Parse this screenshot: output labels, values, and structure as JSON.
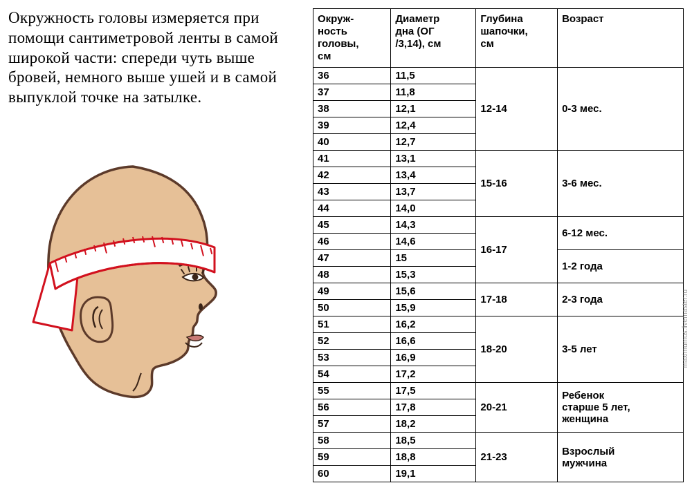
{
  "description": "Окружность головы измеряется при помощи сантиметровой ленты в самой широкой части: спереди чуть выше бровей, немного выше ушей и в самой выпуклой точке на затылке.",
  "table": {
    "columns": [
      "Окруж-\nность\nголовы,\nсм",
      "Диаметр\nдна (ОГ\n/3,14), см",
      "Глубина\nшапочки,\nсм",
      "Возраст"
    ],
    "col_widths": [
      "21%",
      "23%",
      "22%",
      "34%"
    ],
    "rows": [
      {
        "c": "36",
        "d": "11,5",
        "depth": {
          "span": 5,
          "text": "12-14"
        },
        "age": {
          "span": 5,
          "text": "0-3 мес."
        }
      },
      {
        "c": "37",
        "d": "11,8"
      },
      {
        "c": "38",
        "d": "12,1"
      },
      {
        "c": "39",
        "d": "12,4"
      },
      {
        "c": "40",
        "d": "12,7"
      },
      {
        "c": "41",
        "d": "13,1",
        "depth": {
          "span": 4,
          "text": "15-16"
        },
        "age": {
          "span": 4,
          "text": "3-6 мес."
        }
      },
      {
        "c": "42",
        "d": "13,4"
      },
      {
        "c": "43",
        "d": "13,7"
      },
      {
        "c": "44",
        "d": "14,0"
      },
      {
        "c": "45",
        "d": "14,3",
        "depth": {
          "span": 4,
          "text": "16-17"
        },
        "age": {
          "span": 2,
          "text": "6-12 мес."
        }
      },
      {
        "c": "46",
        "d": "14,6"
      },
      {
        "c": "47",
        "d": "15",
        "age": {
          "span": 2,
          "text": "1-2 года"
        }
      },
      {
        "c": "48",
        "d": "15,3"
      },
      {
        "c": "49",
        "d": "15,6",
        "depth": {
          "span": 2,
          "text": "17-18"
        },
        "age": {
          "span": 2,
          "text": "2-3 года"
        }
      },
      {
        "c": "50",
        "d": "15,9"
      },
      {
        "c": "51",
        "d": "16,2",
        "depth": {
          "span": 4,
          "text": "18-20"
        },
        "age": {
          "span": 4,
          "text": "3-5 лет"
        }
      },
      {
        "c": "52",
        "d": "16,6"
      },
      {
        "c": "53",
        "d": "16,9"
      },
      {
        "c": "54",
        "d": "17,2"
      },
      {
        "c": "55",
        "d": "17,5",
        "depth": {
          "span": 3,
          "text": "20-21"
        },
        "age": {
          "span": 3,
          "text": "Ребенок\nстарше 5 лет,\nженщина"
        }
      },
      {
        "c": "56",
        "d": "17,8"
      },
      {
        "c": "57",
        "d": "18,2"
      },
      {
        "c": "58",
        "d": "18,5",
        "depth": {
          "span": 3,
          "text": "21-23"
        },
        "age": {
          "span": 3,
          "text": "Взрослый\nмужчина"
        }
      },
      {
        "c": "59",
        "d": "18,8"
      },
      {
        "c": "60",
        "d": "19,1"
      }
    ]
  },
  "head_svg": {
    "skin_fill": "#e6c097",
    "skin_stroke": "#5c3a2a",
    "feature_stroke": "#3a2418",
    "tape_fill": "#ffffff",
    "tape_stroke": "#d2111e",
    "tick_color": "#d2111e"
  },
  "watermark": "maximumus.livemaster.ru"
}
